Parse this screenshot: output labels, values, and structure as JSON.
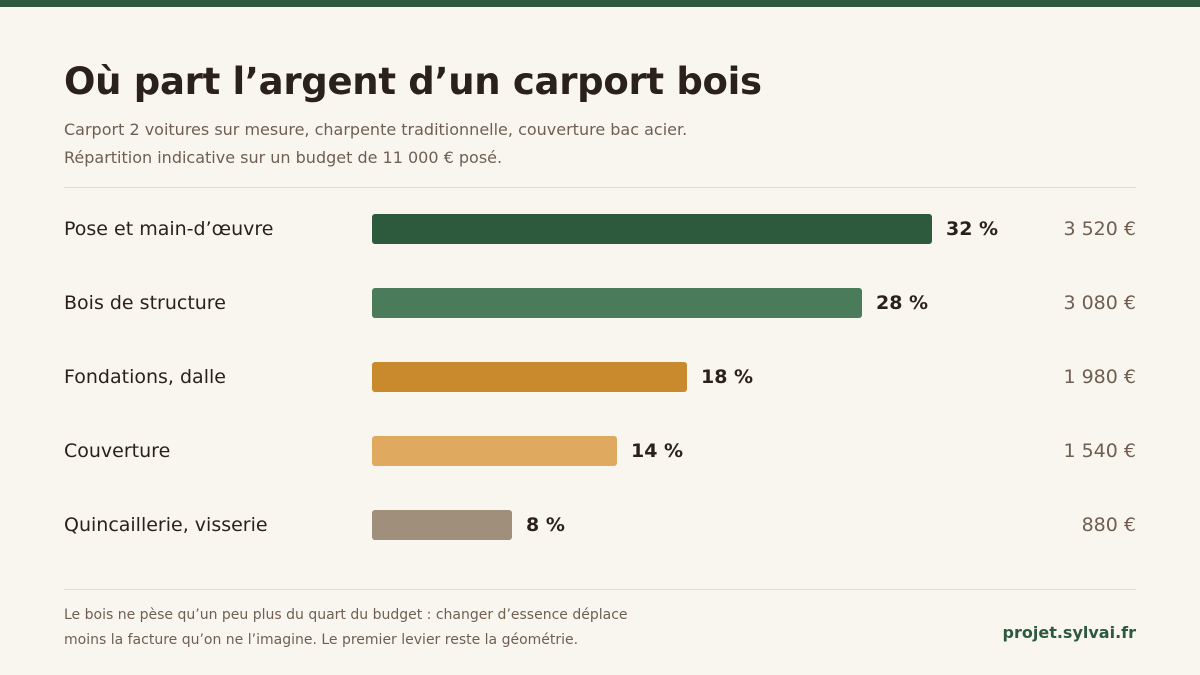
{
  "header": {
    "title": "Où part l’argent d’un carport bois",
    "subtitle_line1": "Carport 2 voitures sur mesure, charpente traditionnelle, couverture bac acier.",
    "subtitle_line2": "Répartition indicative sur un budget de 11 000 € posé."
  },
  "colors": {
    "accent": "#2d5a3d",
    "background": "#f9f6ef"
  },
  "chart_data": {
    "type": "bar",
    "orientation": "horizontal",
    "categories": [
      "Pose et main-d’œuvre",
      "Bois de structure",
      "Fondations, dalle",
      "Couverture",
      "Quincaillerie, visserie"
    ],
    "values": [
      32,
      28,
      18,
      14,
      8
    ],
    "value_labels": [
      "32 %",
      "28 %",
      "18 %",
      "14 %",
      "8 %"
    ],
    "amounts": [
      "3 520 €",
      "3 080 €",
      "1 980 €",
      "1 540 €",
      "880 €"
    ],
    "colors": [
      "#2d5a3d",
      "#4a7c5c",
      "#c98a2e",
      "#dfaa60",
      "#a08f7a"
    ],
    "xlim": [
      0,
      32
    ],
    "grid": false,
    "legend": "none"
  },
  "footer": {
    "note_line1": "Le bois ne pèse qu’un peu plus du quart du budget : changer d’essence déplace",
    "note_line2": "moins la facture qu’on ne l’imagine. Le premier levier reste la géométrie.",
    "source": "projet.sylvai.fr"
  }
}
